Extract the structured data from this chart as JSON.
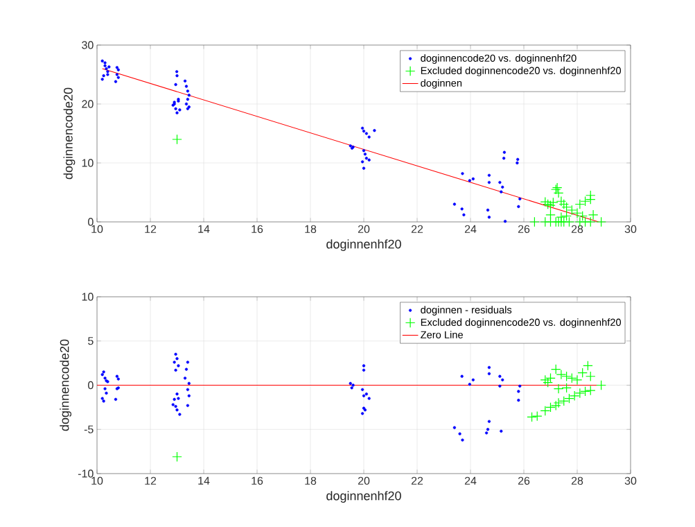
{
  "chart_data": [
    {
      "type": "scatter",
      "xlabel": "doginnenhf20",
      "ylabel": "doginnencode20",
      "xlim": [
        10,
        30
      ],
      "ylim": [
        0,
        30
      ],
      "xticks": [
        10,
        12,
        14,
        16,
        18,
        20,
        22,
        24,
        26,
        28,
        30
      ],
      "yticks": [
        0,
        10,
        20,
        30
      ],
      "grid": true,
      "legend": "top right",
      "series": [
        {
          "name": "doginnencode20 vs. doginnenhf20",
          "color": "#0000ff",
          "marker": "circle",
          "x": [
            10.2,
            10.25,
            10.3,
            10.3,
            10.35,
            10.4,
            10.4,
            10.45,
            10.2,
            10.75,
            10.8,
            10.75,
            10.8,
            10.7,
            12.99,
            13.0,
            12.95,
            13.05,
            12.9,
            12.85,
            12.95,
            13.0,
            13.05,
            13.1,
            12.9,
            13.3,
            13.35,
            13.4,
            13.45,
            13.4,
            13.35,
            13.45,
            13.4,
            19.5,
            19.56,
            19.6,
            19.95,
            20.0,
            20.1,
            20.2,
            20.4,
            20.0,
            20.05,
            20.1,
            19.95,
            20.0,
            20.2,
            23.7,
            23.97,
            24.1,
            23.4,
            23.68,
            23.75,
            24.7,
            24.7,
            24.65,
            24.7,
            25.1,
            25.2,
            25.15,
            25.27,
            25.25,
            25.3,
            25.77,
            25.75,
            25.85,
            25.8
          ],
          "values": [
            24.2,
            24.8,
            26.5,
            27.0,
            26.0,
            25.5,
            25.0,
            26.3,
            27.3,
            26.2,
            25.8,
            25.0,
            24.5,
            23.8,
            25.5,
            24.8,
            23.3,
            20.8,
            20.0,
            19.8,
            19.2,
            18.5,
            20.5,
            19.0,
            20.3,
            23.9,
            23.0,
            22.2,
            21.5,
            20.8,
            20.0,
            19.5,
            19.2,
            12.9,
            12.5,
            12.7,
            15.9,
            15.4,
            15.0,
            14.4,
            15.5,
            12.1,
            11.5,
            10.8,
            10.2,
            9.1,
            10.5,
            8.2,
            7.0,
            7.3,
            3.0,
            2.2,
            1.2,
            7.9,
            6.7,
            2.0,
            0.8,
            6.7,
            5.9,
            5.1,
            11.8,
            10.8,
            0.1,
            10.6,
            10.0,
            3.9,
            2.6
          ]
        },
        {
          "name": "Excluded doginnencode20 vs. doginnenhf20",
          "color": "#00ff00",
          "marker": "cross",
          "x": [
            13.0,
            26.4,
            26.8,
            27.0,
            27.2,
            27.3,
            27.4,
            27.5,
            27.7,
            28.1,
            28.3,
            28.5,
            28.9,
            26.8,
            26.9,
            27.0,
            27.1,
            27.2,
            27.25,
            27.3,
            27.4,
            27.5,
            27.6,
            27.8,
            28.0,
            28.1,
            28.3,
            28.5,
            28.5,
            28.6,
            28.2,
            27.6,
            27.4,
            27.0
          ],
          "values": [
            14.0,
            0,
            0,
            0,
            0,
            0,
            0,
            0,
            0,
            0,
            0,
            0,
            0,
            3.4,
            3.0,
            2.8,
            3.3,
            5.5,
            5.8,
            4.9,
            3.5,
            3.0,
            2.5,
            2.0,
            1.5,
            3.0,
            3.5,
            4.5,
            3.8,
            1.2,
            1.0,
            1.0,
            0.8,
            1.2
          ]
        },
        {
          "name": "doginnen",
          "type": "line",
          "color": "#ff0000",
          "marker": "none",
          "line_style": "solid",
          "x": [
            10.2,
            28.8
          ],
          "values": [
            26.0,
            0.0
          ]
        }
      ]
    },
    {
      "type": "scatter",
      "xlabel": "doginnenhf20",
      "ylabel": "doginnencode20",
      "xlim": [
        10,
        30
      ],
      "ylim": [
        -10,
        10
      ],
      "xticks": [
        10,
        12,
        14,
        16,
        18,
        20,
        22,
        24,
        26,
        28,
        30
      ],
      "yticks": [
        -10,
        -5,
        0,
        5,
        10
      ],
      "grid": true,
      "legend": "top right",
      "series": [
        {
          "name": "doginnen - residuals",
          "color": "#0000ff",
          "marker": "circle",
          "x": [
            10.2,
            10.25,
            10.3,
            10.35,
            10.3,
            10.35,
            10.2,
            10.25,
            10.4,
            10.75,
            10.8,
            10.8,
            10.75,
            10.7,
            12.95,
            13.0,
            12.9,
            13.05,
            12.95,
            12.85,
            12.9,
            13.0,
            13.05,
            13.0,
            13.1,
            12.95,
            13.4,
            13.35,
            13.3,
            13.45,
            13.4,
            13.45,
            13.4,
            19.5,
            19.55,
            19.6,
            20.0,
            20.0,
            19.95,
            20.0,
            20.1,
            20.2,
            20.0,
            19.95,
            20.05,
            23.68,
            23.97,
            24.1,
            23.4,
            23.6,
            23.7,
            24.7,
            24.7,
            25.1,
            25.2,
            25.1,
            25.85,
            25.8,
            25.8,
            24.7,
            24.65,
            24.6,
            25.15
          ],
          "values": [
            1.2,
            1.5,
            0.8,
            0.5,
            -0.4,
            -0.9,
            -1.5,
            -1.8,
            0.4,
            1.0,
            0.7,
            -0.3,
            -0.4,
            -1.6,
            3.5,
            3.0,
            2.6,
            2.2,
            1.7,
            -2.2,
            -1.6,
            -1.0,
            -1.5,
            -2.8,
            -3.3,
            -2.4,
            2.6,
            1.8,
            0.8,
            0.2,
            -0.5,
            -1.2,
            -2.3,
            0.2,
            -0.3,
            0.0,
            2.2,
            1.7,
            -0.5,
            -1.2,
            -1.0,
            -1.5,
            -2.6,
            -3.2,
            -2.8,
            1.0,
            0.1,
            0.6,
            -4.8,
            -5.5,
            -6.2,
            2.0,
            1.3,
            1.0,
            0.6,
            -0.1,
            -0.1,
            -0.7,
            -1.7,
            -4.1,
            -5.0,
            -5.4,
            -5.2
          ]
        },
        {
          "name": "Excluded doginnencode20 vs. doginnenhf20",
          "color": "#00ff00",
          "marker": "cross",
          "x": [
            13.0,
            26.3,
            26.5,
            26.8,
            27.0,
            27.2,
            27.3,
            27.5,
            27.7,
            27.9,
            28.1,
            28.3,
            28.5,
            28.9,
            26.8,
            26.9,
            27.0,
            27.2,
            27.4,
            27.6,
            27.8,
            28.0,
            28.2,
            28.4,
            28.5,
            27.3,
            27.6
          ],
          "values": [
            -8.1,
            -3.6,
            -3.5,
            -2.9,
            -2.5,
            -2.3,
            -2.0,
            -1.8,
            -1.5,
            -1.2,
            -0.9,
            -0.7,
            -0.6,
            0.0,
            0.6,
            0.3,
            0.8,
            1.8,
            1.2,
            1.0,
            0.8,
            0.6,
            1.4,
            2.2,
            1.0,
            -0.4,
            -0.3
          ]
        },
        {
          "name": "Zero Line",
          "type": "line",
          "color": "#ff0000",
          "marker": "none",
          "line_style": "solid",
          "x": [
            10.0,
            28.9
          ],
          "values": [
            0.0,
            0.0
          ]
        }
      ]
    }
  ]
}
